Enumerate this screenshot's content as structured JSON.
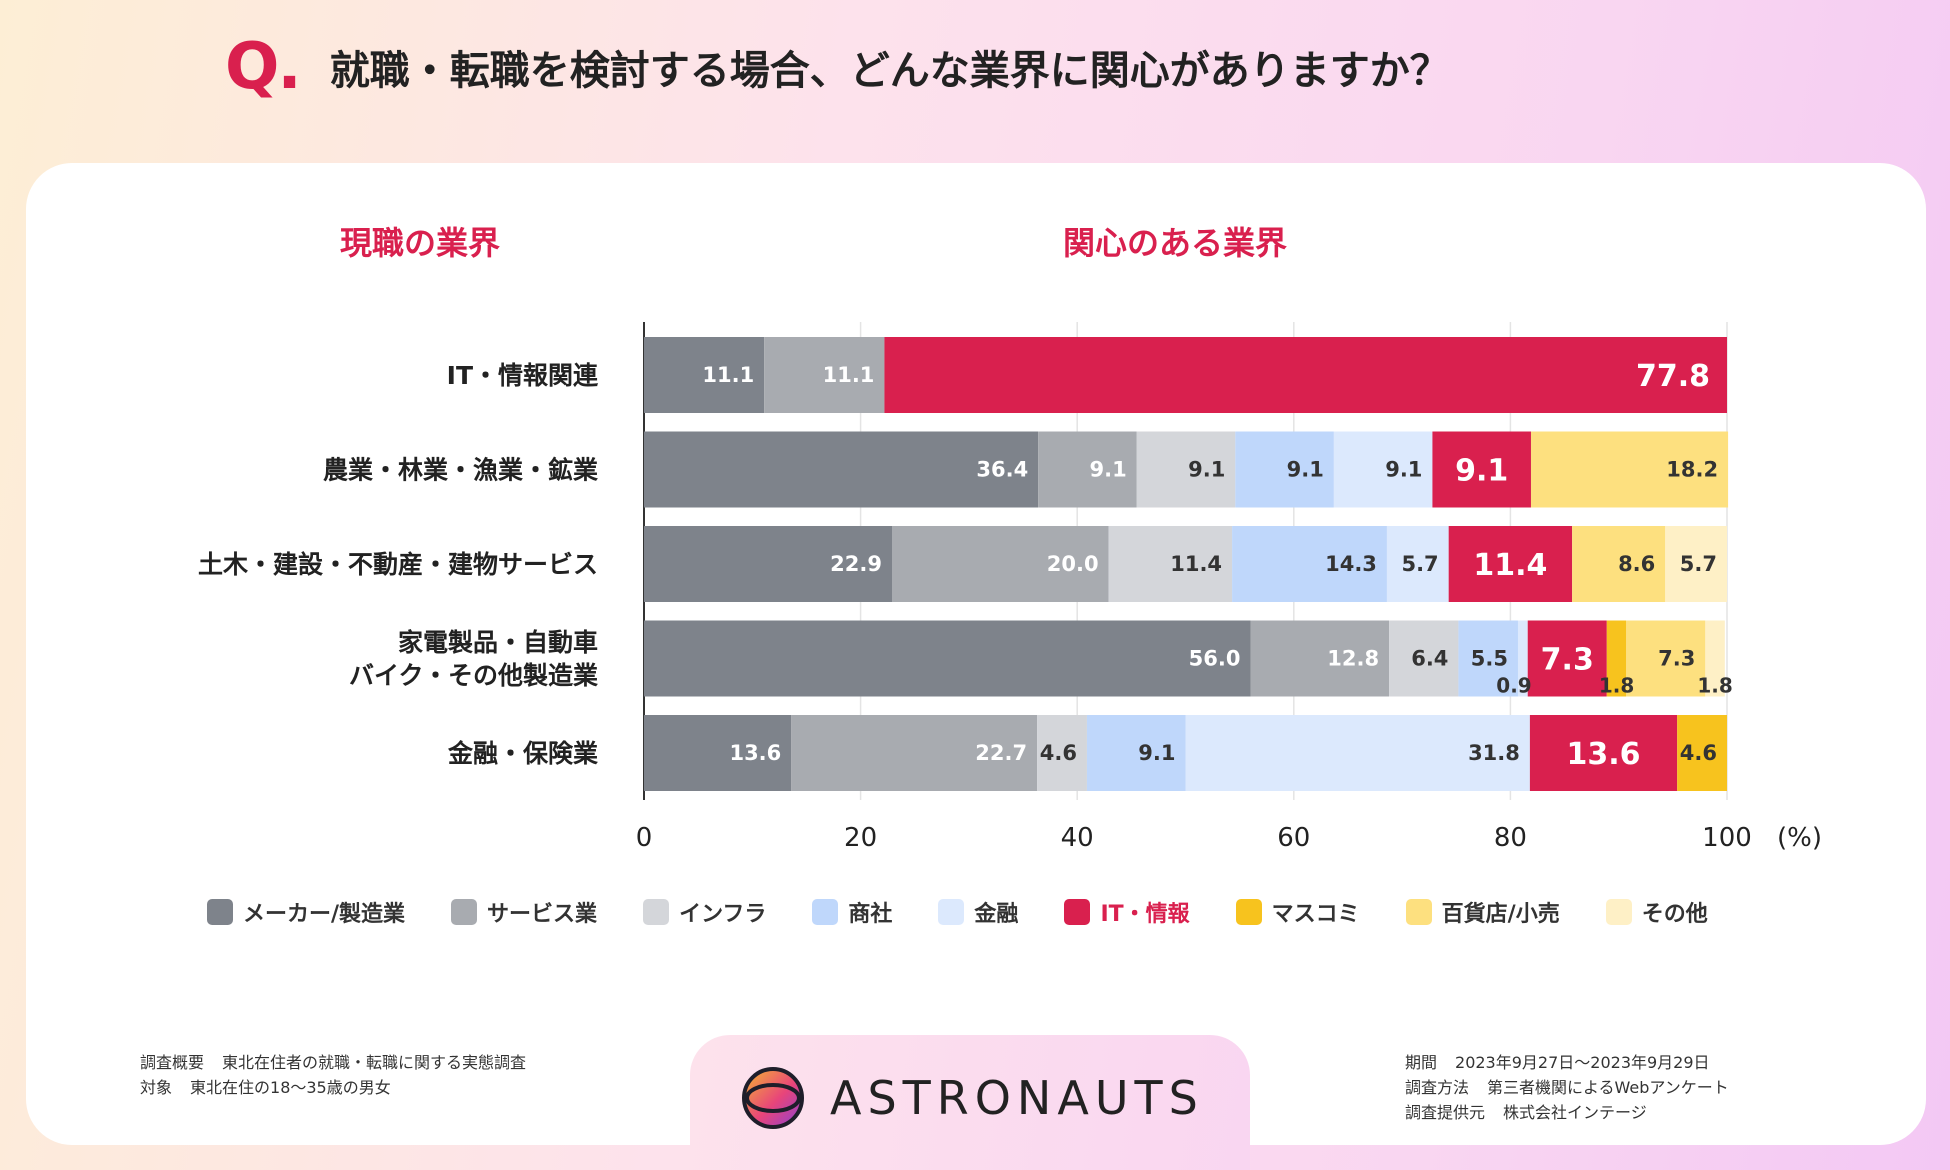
{
  "question": {
    "mark": "Q.",
    "text": "就職・転職を検討する場合、どんな業界に関心がありますか？"
  },
  "left_header": "現職の業界",
  "right_header": "関心のある業界",
  "colors": {
    "accent": "#d9204e",
    "maker": "#7e838b",
    "service": "#a8abb0",
    "infra": "#d4d6da",
    "trading": "#bfd7fb",
    "finance": "#dce9fd",
    "it": "#d9204e",
    "media": "#f7c31e",
    "retail": "#fde07f",
    "other": "#fef0c6"
  },
  "chart_data": {
    "type": "bar",
    "orientation": "horizontal",
    "stacked": true,
    "xlabel": "(%)",
    "xlim": [
      0,
      100
    ],
    "xticks": [
      0,
      20,
      40,
      60,
      80,
      100
    ],
    "categories": [
      "IT・情報関連",
      "農業・林業・漁業・鉱業",
      "土木・建設・不動産・建物サービス",
      "家電製品・自動車\nバイク・その他製造業",
      "金融・保険業"
    ],
    "series": [
      {
        "name": "メーカー/製造業",
        "key": "maker",
        "values": [
          11.1,
          36.4,
          22.9,
          56.0,
          13.6
        ]
      },
      {
        "name": "サービス業",
        "key": "service",
        "values": [
          11.1,
          9.1,
          20.0,
          12.8,
          22.7
        ]
      },
      {
        "name": "インフラ",
        "key": "infra",
        "values": [
          0,
          9.1,
          11.4,
          6.4,
          4.6
        ]
      },
      {
        "name": "商社",
        "key": "trading",
        "values": [
          0,
          9.1,
          14.3,
          5.5,
          9.1
        ]
      },
      {
        "name": "金融",
        "key": "finance",
        "values": [
          0,
          9.1,
          5.7,
          0.9,
          31.8
        ]
      },
      {
        "name": "IT・情報",
        "key": "it",
        "values": [
          77.8,
          9.1,
          11.4,
          7.3,
          13.6
        ]
      },
      {
        "name": "マスコミ",
        "key": "media",
        "values": [
          0,
          0,
          0,
          1.8,
          4.6
        ]
      },
      {
        "name": "百貨店/小売",
        "key": "retail",
        "values": [
          0,
          18.2,
          8.6,
          7.3,
          0
        ]
      },
      {
        "name": "その他",
        "key": "other",
        "values": [
          0,
          0,
          5.7,
          1.8,
          0
        ]
      }
    ]
  },
  "footnotes": {
    "left": [
      [
        "調査概要",
        "東北在住者の就職・転職に関する実態調査"
      ],
      [
        "対象",
        "東北在住の18〜35歳の男女"
      ]
    ],
    "right": [
      [
        "期間",
        "2023年9月27日〜2023年9月29日"
      ],
      [
        "調査方法",
        "第三者機関によるWebアンケート"
      ],
      [
        "調査提供元",
        "株式会社インテージ"
      ]
    ]
  },
  "logo": {
    "text": "ASTRONAUTS"
  }
}
